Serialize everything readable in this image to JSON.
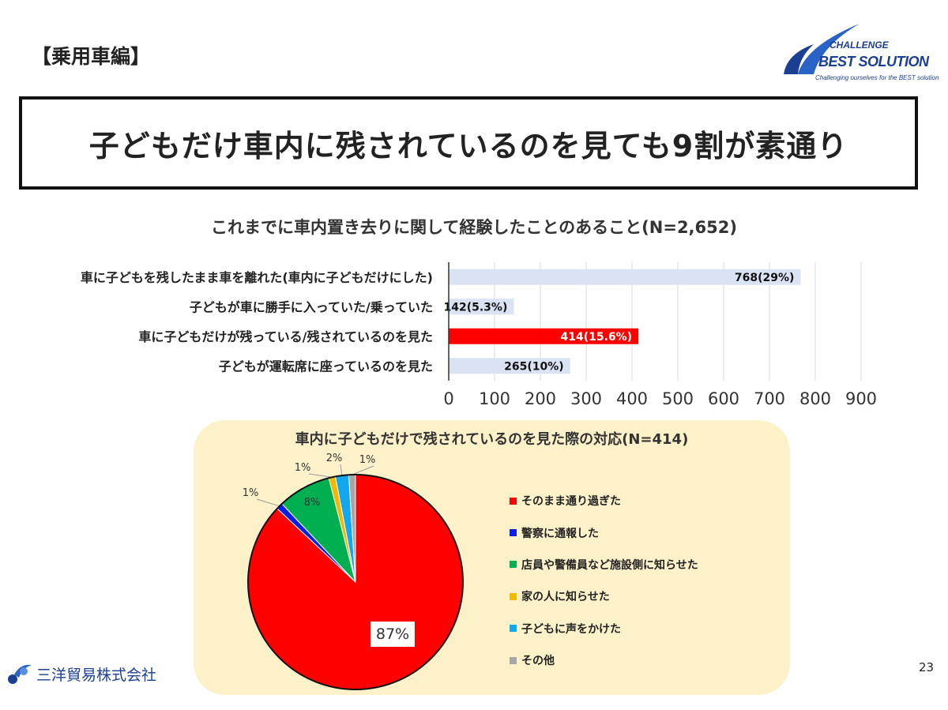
{
  "header": {
    "section_tag": "【乗用車編】",
    "headline": "子どもだけ車内に残されているのを見ても9割が素通り"
  },
  "logo": {
    "line1": "CHALLENGE",
    "line2": "BEST SOLUTION",
    "line3": "Challenging ourselves for the BEST solution"
  },
  "footer": {
    "company": "三洋貿易株式会社",
    "page_number": "23"
  },
  "colors": {
    "bar_default": "#dae3f3",
    "bar_highlight": "#ff0000",
    "pie_panel_bg": "#fdf1c9",
    "brand": "#1b3f93"
  },
  "chart_data": [
    {
      "type": "bar",
      "orientation": "horizontal",
      "title": "これまでに車内置き去りに関して経験したことのあること(N=2,652)",
      "categories": [
        "車に子どもを残したまま車を離れた(車内に子どもだけにした)",
        "子どもが車に勝手に入っていた/乗っていた",
        "車に子どもだけが残っている/残されているのを見た",
        "子どもが運転席に座っているのを見た"
      ],
      "values": [
        768,
        142,
        414,
        265
      ],
      "data_labels": [
        "768(29%)",
        "142(5.3%)",
        "414(15.6%)",
        "265(10%)"
      ],
      "highlight_index": 2,
      "xlim": [
        0,
        900
      ],
      "xticks": [
        0,
        100,
        200,
        300,
        400,
        500,
        600,
        700,
        800,
        900
      ],
      "grid": true
    },
    {
      "type": "pie",
      "title": "車内に子どもだけで残されているのを見た際の対応(N=414)",
      "labels": [
        "そのまま通り過ぎた",
        "警察に通報した",
        "店員や警備員など施設側に知らせた",
        "家の人に知らせた",
        "子どもに声をかけた",
        "その他"
      ],
      "values": [
        87,
        1,
        8,
        1,
        2,
        1
      ],
      "data_labels": [
        "87%",
        "1%",
        "8%",
        "1%",
        "2%",
        "1%"
      ],
      "colors": [
        "#ff0000",
        "#0a1ee6",
        "#00b050",
        "#f5b800",
        "#11a8ee",
        "#a6a6a6"
      ],
      "legend_position": "right"
    }
  ]
}
